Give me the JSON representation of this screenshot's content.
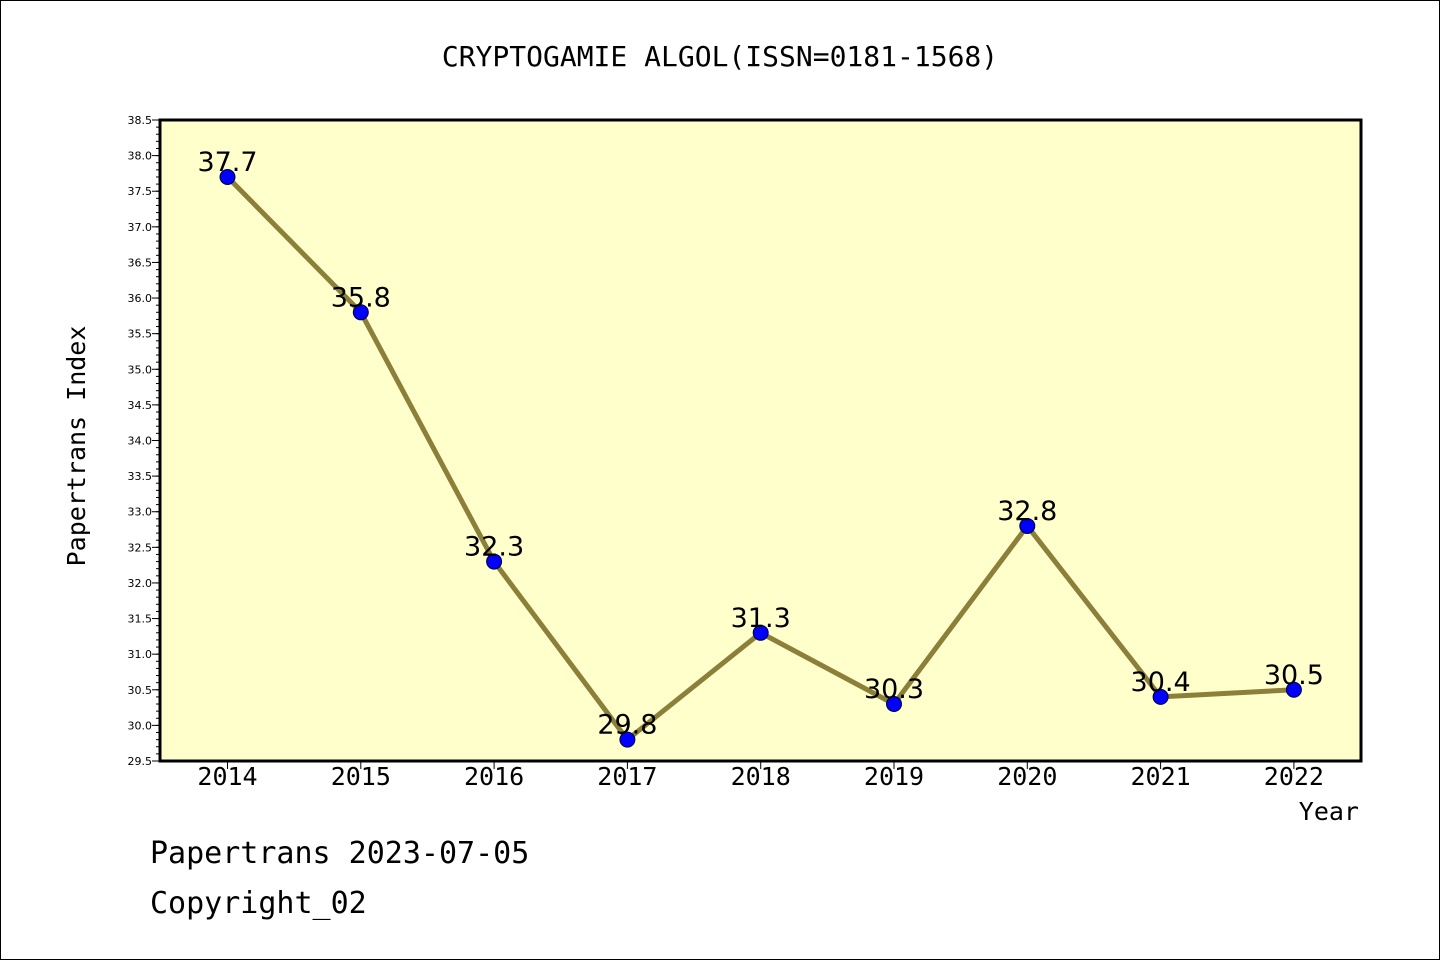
{
  "chart_data": {
    "type": "line",
    "title": "CRYPTOGAMIE ALGOL(ISSN=0181-1568)",
    "xlabel": "Year",
    "ylabel": "Papertrans Index",
    "categories": [
      "2014",
      "2015",
      "2016",
      "2017",
      "2018",
      "2019",
      "2020",
      "2021",
      "2022"
    ],
    "values": [
      37.7,
      35.8,
      32.3,
      29.8,
      31.3,
      30.3,
      32.8,
      30.4,
      30.5
    ],
    "data_labels": [
      "37.7",
      "35.8",
      "32.3",
      "29.8",
      "31.3",
      "30.3",
      "32.8",
      "30.4",
      "30.5"
    ],
    "ylim": [
      29.5,
      38.5
    ],
    "yticks": [
      "29.5",
      "30.0",
      "30.5",
      "31.0",
      "31.5",
      "32.0",
      "32.5",
      "33.0",
      "33.5",
      "34.0",
      "34.5",
      "35.0",
      "35.5",
      "36.0",
      "36.5",
      "37.0",
      "37.5",
      "38.0",
      "38.5"
    ],
    "grid": false,
    "legend": "none",
    "colors": {
      "plot_background": "#ffffcc",
      "line": "#8c7f3a",
      "marker": "#0000ff"
    }
  },
  "footer": {
    "line1": "Papertrans 2023-07-05",
    "line2": "Copyright_02"
  }
}
